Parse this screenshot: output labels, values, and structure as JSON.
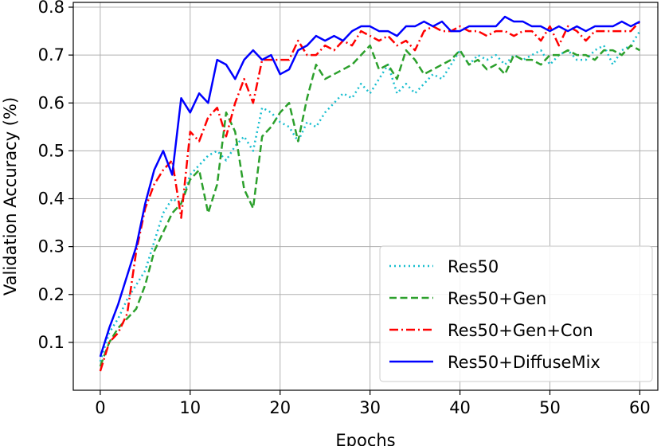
{
  "chart_data": {
    "type": "line",
    "title": "",
    "xlabel": "Epochs",
    "ylabel": "Validation Accuracy (%)",
    "xlim": [
      -3,
      62
    ],
    "ylim": [
      0,
      0.81
    ],
    "xticks": [
      0,
      10,
      20,
      30,
      40,
      50,
      60
    ],
    "yticks": [
      0.1,
      0.2,
      0.3,
      0.4,
      0.5,
      0.6,
      0.7,
      0.8
    ],
    "ytick_labels": [
      "0.1",
      "0.2",
      "0.3",
      "0.4",
      "0.5",
      "0.6",
      "0.7",
      "0.8"
    ],
    "grid": true,
    "legend_position": "bottom-right",
    "x": [
      0,
      1,
      2,
      3,
      4,
      5,
      6,
      7,
      8,
      9,
      10,
      11,
      12,
      13,
      14,
      15,
      16,
      17,
      18,
      19,
      20,
      21,
      22,
      23,
      24,
      25,
      26,
      27,
      28,
      29,
      30,
      31,
      32,
      33,
      34,
      35,
      36,
      37,
      38,
      39,
      40,
      41,
      42,
      43,
      44,
      45,
      46,
      47,
      48,
      49,
      50,
      51,
      52,
      53,
      54,
      55,
      56,
      57,
      58,
      59,
      60
    ],
    "series": [
      {
        "name": "Res50",
        "color": "#17becf",
        "style": "dotted",
        "values": [
          0.06,
          0.12,
          0.15,
          0.19,
          0.22,
          0.25,
          0.31,
          0.37,
          0.4,
          0.39,
          0.45,
          0.47,
          0.49,
          0.5,
          0.48,
          0.51,
          0.53,
          0.5,
          0.59,
          0.58,
          0.56,
          0.55,
          0.52,
          0.56,
          0.55,
          0.58,
          0.6,
          0.62,
          0.61,
          0.64,
          0.62,
          0.65,
          0.68,
          0.62,
          0.64,
          0.62,
          0.64,
          0.66,
          0.65,
          0.68,
          0.71,
          0.68,
          0.7,
          0.69,
          0.7,
          0.68,
          0.7,
          0.69,
          0.7,
          0.71,
          0.68,
          0.7,
          0.71,
          0.69,
          0.69,
          0.71,
          0.72,
          0.68,
          0.71,
          0.72,
          0.75
        ]
      },
      {
        "name": "Res50+Gen",
        "color": "#2ca02c",
        "style": "dashed",
        "values": [
          0.05,
          0.1,
          0.13,
          0.15,
          0.17,
          0.22,
          0.29,
          0.33,
          0.37,
          0.39,
          0.44,
          0.46,
          0.37,
          0.43,
          0.58,
          0.54,
          0.42,
          0.38,
          0.53,
          0.55,
          0.58,
          0.6,
          0.52,
          0.61,
          0.68,
          0.65,
          0.66,
          0.67,
          0.68,
          0.7,
          0.72,
          0.67,
          0.68,
          0.65,
          0.71,
          0.69,
          0.66,
          0.67,
          0.68,
          0.69,
          0.71,
          0.68,
          0.69,
          0.67,
          0.68,
          0.66,
          0.7,
          0.69,
          0.69,
          0.68,
          0.7,
          0.7,
          0.71,
          0.7,
          0.7,
          0.69,
          0.71,
          0.71,
          0.7,
          0.72,
          0.71
        ]
      },
      {
        "name": "Res50+Gen+Con",
        "color": "#ff0000",
        "style": "dashdot",
        "values": [
          0.04,
          0.1,
          0.12,
          0.16,
          0.29,
          0.38,
          0.43,
          0.46,
          0.48,
          0.36,
          0.54,
          0.52,
          0.57,
          0.59,
          0.53,
          0.6,
          0.65,
          0.6,
          0.69,
          0.69,
          0.69,
          0.69,
          0.73,
          0.7,
          0.7,
          0.72,
          0.71,
          0.73,
          0.72,
          0.75,
          0.74,
          0.73,
          0.74,
          0.72,
          0.73,
          0.71,
          0.75,
          0.76,
          0.75,
          0.75,
          0.76,
          0.75,
          0.75,
          0.74,
          0.75,
          0.75,
          0.74,
          0.75,
          0.75,
          0.73,
          0.76,
          0.72,
          0.76,
          0.75,
          0.73,
          0.75,
          0.75,
          0.75,
          0.75,
          0.75,
          0.77
        ]
      },
      {
        "name": "Res50+DiffuseMix",
        "color": "#0000ff",
        "style": "solid",
        "values": [
          0.07,
          0.13,
          0.18,
          0.24,
          0.3,
          0.39,
          0.46,
          0.5,
          0.45,
          0.61,
          0.58,
          0.62,
          0.6,
          0.69,
          0.68,
          0.65,
          0.69,
          0.71,
          0.69,
          0.7,
          0.66,
          0.67,
          0.71,
          0.72,
          0.74,
          0.73,
          0.74,
          0.73,
          0.75,
          0.76,
          0.76,
          0.75,
          0.75,
          0.74,
          0.76,
          0.76,
          0.77,
          0.76,
          0.77,
          0.75,
          0.75,
          0.76,
          0.76,
          0.76,
          0.76,
          0.78,
          0.77,
          0.77,
          0.76,
          0.76,
          0.75,
          0.76,
          0.75,
          0.76,
          0.75,
          0.76,
          0.76,
          0.76,
          0.77,
          0.76,
          0.77
        ]
      }
    ]
  }
}
